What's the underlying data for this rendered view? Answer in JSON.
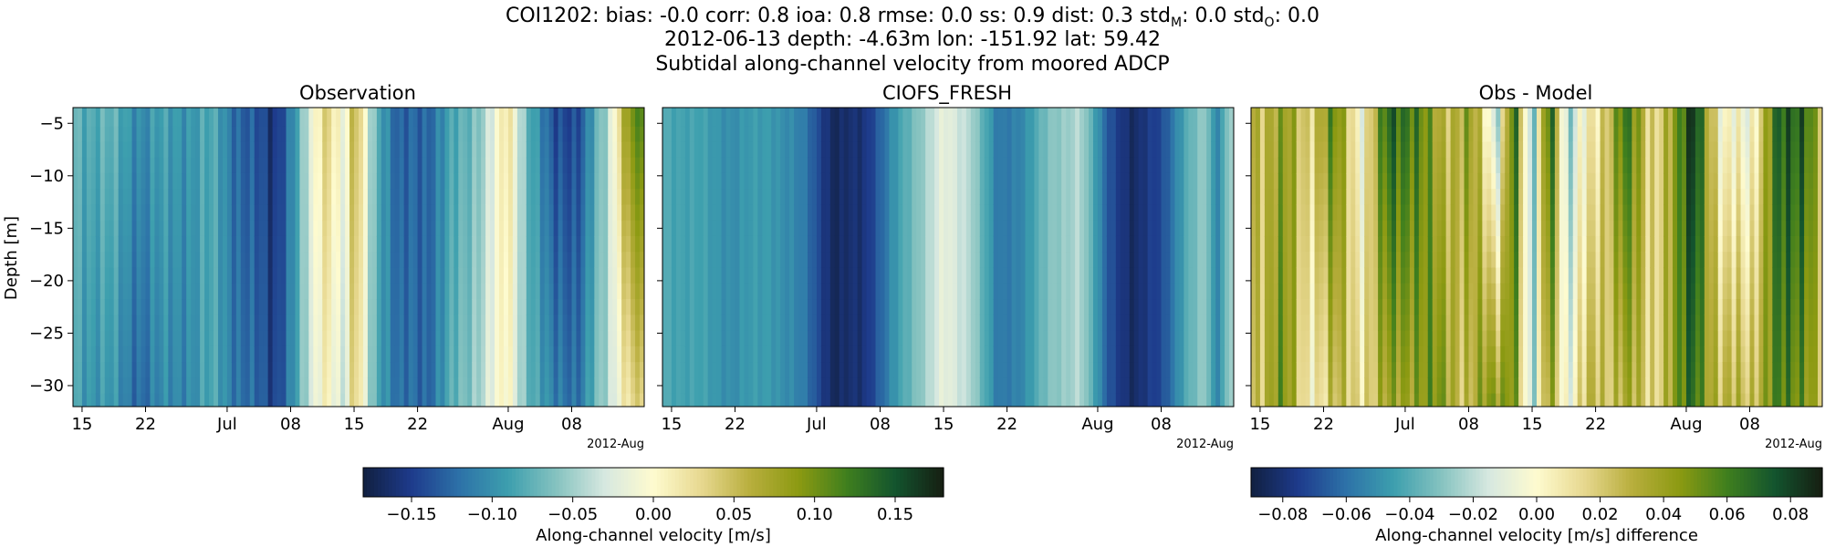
{
  "title": {
    "line1": "COI1202: bias: -0.0  corr: 0.8  ioa: 0.8  rmse: 0.0  ss: 0.9  dist: 0.3  std",
    "line1_stdm_sub": "M",
    "line1_mid": ": 0.0  std",
    "line1_stdo_sub": "O",
    "line1_end": ": 0.0",
    "line2": "2012-06-13 depth: -4.63m lon: -151.92 lat: 59.42",
    "line3": "Subtidal along-channel velocity from moored ADCP"
  },
  "chart_data": [
    {
      "type": "heatmap",
      "title": "Observation",
      "ylabel": "Depth [m]",
      "ylim": [
        -32,
        -3.5
      ],
      "xlim": [
        "2012-06-14",
        "2012-08-16"
      ],
      "y_ticks": [
        -5,
        -10,
        -15,
        -20,
        -25,
        -30
      ],
      "x_ticks": [
        {
          "date": "2012-06-15",
          "label": "15"
        },
        {
          "date": "2012-06-22",
          "label": "22"
        },
        {
          "date": "2012-07-01",
          "label": "Jul"
        },
        {
          "date": "2012-07-08",
          "label": "08"
        },
        {
          "date": "2012-07-15",
          "label": "15"
        },
        {
          "date": "2012-07-22",
          "label": "22"
        },
        {
          "date": "2012-08-01",
          "label": "Aug"
        },
        {
          "date": "2012-08-08",
          "label": "08"
        }
      ],
      "x_offset_label": "2012-Aug",
      "colormap": "delta",
      "clim": [
        -0.18,
        0.18
      ],
      "depth_rows": [
        -4.63,
        -6,
        -7.5,
        -9,
        -10.5,
        -12,
        -13.5,
        -15,
        -16.5,
        -18,
        -19.5,
        -21,
        -22.5,
        -24,
        -25.5,
        -27,
        -28.5,
        -30,
        -31.5
      ],
      "time_profile": [
        {
          "date": "2012-06-14",
          "surface": -0.07,
          "deep": -0.08
        },
        {
          "date": "2012-06-18",
          "surface": -0.08,
          "deep": -0.1
        },
        {
          "date": "2012-06-22",
          "surface": -0.1,
          "deep": -0.12
        },
        {
          "date": "2012-06-26",
          "surface": -0.09,
          "deep": -0.1
        },
        {
          "date": "2012-06-30",
          "surface": -0.09,
          "deep": -0.09
        },
        {
          "date": "2012-07-03",
          "surface": -0.13,
          "deep": -0.12
        },
        {
          "date": "2012-07-06",
          "surface": -0.16,
          "deep": -0.15
        },
        {
          "date": "2012-07-09",
          "surface": -0.08,
          "deep": -0.08
        },
        {
          "date": "2012-07-12",
          "surface": 0.05,
          "deep": 0.02
        },
        {
          "date": "2012-07-14",
          "surface": -0.02,
          "deep": -0.04
        },
        {
          "date": "2012-07-15",
          "surface": 0.06,
          "deep": 0.04
        },
        {
          "date": "2012-07-17",
          "surface": -0.05,
          "deep": -0.06
        },
        {
          "date": "2012-07-20",
          "surface": -0.14,
          "deep": -0.13
        },
        {
          "date": "2012-07-23",
          "surface": -0.12,
          "deep": -0.12
        },
        {
          "date": "2012-07-27",
          "surface": -0.08,
          "deep": -0.07
        },
        {
          "date": "2012-07-30",
          "surface": -0.03,
          "deep": -0.02
        },
        {
          "date": "2012-08-01",
          "surface": 0.02,
          "deep": 0.0
        },
        {
          "date": "2012-08-03",
          "surface": -0.06,
          "deep": -0.06
        },
        {
          "date": "2012-08-06",
          "surface": -0.15,
          "deep": -0.12
        },
        {
          "date": "2012-08-09",
          "surface": -0.13,
          "deep": -0.11
        },
        {
          "date": "2012-08-12",
          "surface": -0.05,
          "deep": -0.05
        },
        {
          "date": "2012-08-14",
          "surface": 0.09,
          "deep": 0.03
        },
        {
          "date": "2012-08-16",
          "surface": 0.12,
          "deep": 0.04
        }
      ]
    },
    {
      "type": "heatmap",
      "title": "CIOFS_FRESH",
      "ylim": [
        -32,
        -3.5
      ],
      "xlim": [
        "2012-06-14",
        "2012-08-16"
      ],
      "x_offset_label": "2012-Aug",
      "colormap": "delta",
      "clim": [
        -0.18,
        0.18
      ],
      "time_profile": [
        {
          "date": "2012-06-14",
          "surface": -0.08,
          "deep": -0.08
        },
        {
          "date": "2012-06-18",
          "surface": -0.09,
          "deep": -0.09
        },
        {
          "date": "2012-06-22",
          "surface": -0.1,
          "deep": -0.1
        },
        {
          "date": "2012-06-26",
          "surface": -0.09,
          "deep": -0.09
        },
        {
          "date": "2012-06-30",
          "surface": -0.12,
          "deep": -0.12
        },
        {
          "date": "2012-07-03",
          "surface": -0.17,
          "deep": -0.17
        },
        {
          "date": "2012-07-06",
          "surface": -0.16,
          "deep": -0.16
        },
        {
          "date": "2012-07-09",
          "surface": -0.11,
          "deep": -0.11
        },
        {
          "date": "2012-07-12",
          "surface": -0.06,
          "deep": -0.06
        },
        {
          "date": "2012-07-15",
          "surface": -0.02,
          "deep": -0.02
        },
        {
          "date": "2012-07-18",
          "surface": -0.04,
          "deep": -0.04
        },
        {
          "date": "2012-07-21",
          "surface": -0.12,
          "deep": -0.12
        },
        {
          "date": "2012-07-24",
          "surface": -0.1,
          "deep": -0.1
        },
        {
          "date": "2012-07-27",
          "surface": -0.06,
          "deep": -0.06
        },
        {
          "date": "2012-07-30",
          "surface": -0.04,
          "deep": -0.04
        },
        {
          "date": "2012-08-02",
          "surface": -0.13,
          "deep": -0.13
        },
        {
          "date": "2012-08-05",
          "surface": -0.17,
          "deep": -0.17
        },
        {
          "date": "2012-08-08",
          "surface": -0.14,
          "deep": -0.14
        },
        {
          "date": "2012-08-11",
          "surface": -0.08,
          "deep": -0.08
        },
        {
          "date": "2012-08-13",
          "surface": -0.05,
          "deep": -0.05
        },
        {
          "date": "2012-08-14",
          "surface": -0.11,
          "deep": -0.11
        },
        {
          "date": "2012-08-16",
          "surface": -0.04,
          "deep": -0.04
        }
      ]
    },
    {
      "type": "heatmap",
      "title": "Obs - Model",
      "ylim": [
        -32,
        -3.5
      ],
      "xlim": [
        "2012-06-14",
        "2012-08-16"
      ],
      "x_offset_label": "2012-Aug",
      "colormap": "delta",
      "clim": [
        -0.09,
        0.09
      ],
      "time_profile": [
        {
          "date": "2012-06-14",
          "surface": 0.03,
          "deep": 0.02
        },
        {
          "date": "2012-06-17",
          "surface": 0.04,
          "deep": 0.05
        },
        {
          "date": "2012-06-20",
          "surface": 0.02,
          "deep": 0.01
        },
        {
          "date": "2012-06-23",
          "surface": 0.05,
          "deep": 0.02
        },
        {
          "date": "2012-06-26",
          "surface": 0.0,
          "deep": 0.02
        },
        {
          "date": "2012-06-29",
          "surface": 0.06,
          "deep": 0.03
        },
        {
          "date": "2012-07-02",
          "surface": 0.07,
          "deep": 0.05
        },
        {
          "date": "2012-07-05",
          "surface": 0.02,
          "deep": 0.04
        },
        {
          "date": "2012-07-08",
          "surface": 0.05,
          "deep": 0.03
        },
        {
          "date": "2012-07-11",
          "surface": -0.03,
          "deep": 0.04
        },
        {
          "date": "2012-07-13",
          "surface": 0.08,
          "deep": 0.06
        },
        {
          "date": "2012-07-15",
          "surface": -0.05,
          "deep": -0.04
        },
        {
          "date": "2012-07-17",
          "surface": 0.08,
          "deep": 0.05
        },
        {
          "date": "2012-07-19",
          "surface": -0.03,
          "deep": -0.01
        },
        {
          "date": "2012-07-22",
          "surface": 0.01,
          "deep": 0.03
        },
        {
          "date": "2012-07-25",
          "surface": 0.06,
          "deep": 0.03
        },
        {
          "date": "2012-07-28",
          "surface": 0.02,
          "deep": 0.02
        },
        {
          "date": "2012-07-31",
          "surface": 0.04,
          "deep": 0.04
        },
        {
          "date": "2012-08-02",
          "surface": 0.09,
          "deep": 0.07
        },
        {
          "date": "2012-08-05",
          "surface": -0.01,
          "deep": 0.02
        },
        {
          "date": "2012-08-08",
          "surface": 0.0,
          "deep": 0.03
        },
        {
          "date": "2012-08-11",
          "surface": 0.06,
          "deep": 0.05
        },
        {
          "date": "2012-08-14",
          "surface": 0.08,
          "deep": 0.06
        },
        {
          "date": "2012-08-16",
          "surface": 0.02,
          "deep": 0.02
        }
      ]
    }
  ],
  "colorbars": [
    {
      "label": "Along-channel velocity [m/s]",
      "clim": [
        -0.18,
        0.18
      ],
      "ticks": [
        -0.15,
        -0.1,
        -0.05,
        0.0,
        0.05,
        0.1,
        0.15
      ],
      "tick_labels": [
        "−0.15",
        "−0.10",
        "−0.05",
        "0.00",
        "0.05",
        "0.10",
        "0.15"
      ]
    },
    {
      "label": "Along-channel velocity [m/s] difference",
      "clim": [
        -0.09,
        0.09
      ],
      "ticks": [
        -0.08,
        -0.06,
        -0.04,
        -0.02,
        0.0,
        0.02,
        0.04,
        0.06,
        0.08
      ],
      "tick_labels": [
        "−0.08",
        "−0.06",
        "−0.04",
        "−0.02",
        "0.00",
        "0.02",
        "0.04",
        "0.06",
        "0.08"
      ]
    }
  ],
  "y_tick_labels": [
    "−5",
    "−10",
    "−15",
    "−20",
    "−25",
    "−30"
  ],
  "colormap_stops": [
    "#112040",
    "#1e3b8c",
    "#2d72a8",
    "#3d9fae",
    "#86c3c0",
    "#d7e8e0",
    "#fefbcf",
    "#e7d88f",
    "#b8ae3d",
    "#8c9a12",
    "#3f7f1e",
    "#13542e",
    "#161e12"
  ]
}
